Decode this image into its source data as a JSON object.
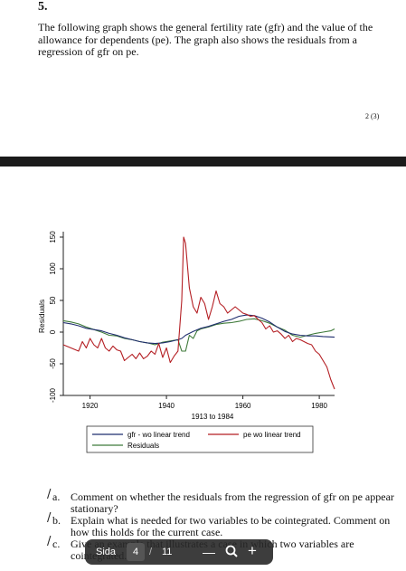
{
  "question": {
    "number": "5.",
    "intro": "The following graph shows the general fertility rate (gfr) and the value of the allowance for dependents (pe). The graph also shows the residuals from a regression of gfr on pe.",
    "page_mark": "2 (3)"
  },
  "chart_data": {
    "type": "line",
    "ylabel": "Residuals",
    "xlabel": "1913 to 1984",
    "xlim": [
      1913,
      1984
    ],
    "ylim": [
      -100,
      150
    ],
    "x_ticks": [
      "1920",
      "1940",
      "1960",
      "1980"
    ],
    "y_ticks": [
      "-100",
      "-50",
      "0",
      "50",
      "100",
      "150"
    ],
    "legend_position": "bottom",
    "series": [
      {
        "name": "gfr - wo linear trend",
        "color": "#1f2d6e",
        "x": [
          1913,
          1915,
          1917,
          1919,
          1921,
          1923,
          1925,
          1927,
          1929,
          1931,
          1933,
          1935,
          1937,
          1939,
          1941,
          1943,
          1944,
          1945,
          1947,
          1949,
          1951,
          1953,
          1955,
          1957,
          1959,
          1961,
          1963,
          1965,
          1967,
          1969,
          1971,
          1973,
          1975,
          1977,
          1979,
          1981,
          1984
        ],
        "y": [
          15,
          13,
          10,
          6,
          4,
          2,
          -2,
          -5,
          -9,
          -12,
          -15,
          -17,
          -18,
          -17,
          -15,
          -12,
          -10,
          -5,
          1,
          6,
          9,
          13,
          17,
          20,
          25,
          27,
          26,
          22,
          16,
          8,
          1,
          -3,
          -5,
          -6,
          -6,
          -7,
          -8
        ]
      },
      {
        "name": "pe wo linear trend",
        "color": "#b41e23",
        "x": [
          1913,
          1915,
          1917,
          1918,
          1919,
          1920,
          1921,
          1922,
          1923,
          1924,
          1925,
          1926,
          1927,
          1928,
          1929,
          1930,
          1931,
          1932,
          1933,
          1934,
          1935,
          1936,
          1937,
          1938,
          1939,
          1940,
          1941,
          1942,
          1943,
          1944,
          1944.5,
          1945,
          1946,
          1947,
          1948,
          1949,
          1950,
          1951,
          1952,
          1953,
          1954,
          1955,
          1956,
          1957,
          1958,
          1959,
          1960,
          1961,
          1962,
          1963,
          1964,
          1965,
          1966,
          1967,
          1968,
          1969,
          1970,
          1971,
          1972,
          1973,
          1974,
          1975,
          1976,
          1977,
          1978,
          1979,
          1980,
          1981,
          1982,
          1983,
          1984
        ],
        "y": [
          -20,
          -25,
          -30,
          -15,
          -25,
          -10,
          -20,
          -25,
          -10,
          -25,
          -30,
          -22,
          -28,
          -30,
          -45,
          -40,
          -35,
          -42,
          -33,
          -42,
          -38,
          -30,
          -35,
          -18,
          -40,
          -25,
          -48,
          -38,
          -30,
          50,
          150,
          140,
          70,
          40,
          30,
          55,
          45,
          20,
          40,
          65,
          45,
          40,
          30,
          35,
          40,
          35,
          30,
          28,
          25,
          26,
          20,
          15,
          5,
          10,
          0,
          2,
          -3,
          -10,
          -5,
          -15,
          -10,
          -12,
          -15,
          -18,
          -20,
          -30,
          -35,
          -45,
          -55,
          -75,
          -90
        ]
      },
      {
        "name": "Residuals",
        "color": "#3f7a3a",
        "x": [
          1913,
          1915,
          1917,
          1919,
          1921,
          1923,
          1925,
          1927,
          1929,
          1931,
          1933,
          1935,
          1937,
          1939,
          1941,
          1943,
          1944,
          1945,
          1946,
          1947,
          1948,
          1949,
          1951,
          1953,
          1955,
          1957,
          1959,
          1961,
          1963,
          1965,
          1967,
          1969,
          1971,
          1973,
          1975,
          1977,
          1979,
          1981,
          1983,
          1984
        ],
        "y": [
          18,
          16,
          13,
          8,
          4,
          0,
          -5,
          -6,
          -10,
          -12,
          -15,
          -17,
          -20,
          -16,
          -14,
          -12,
          -30,
          -30,
          -5,
          -10,
          2,
          5,
          8,
          12,
          14,
          15,
          17,
          20,
          21,
          18,
          14,
          8,
          3,
          -5,
          -8,
          -5,
          -2,
          0,
          2,
          5
        ]
      }
    ]
  },
  "questions": [
    {
      "letter": "a.",
      "text": "Comment on whether the residuals from the regression of gfr on pe appear stationary?"
    },
    {
      "letter": "b.",
      "text": "Explain what is needed for two variables to be cointegrated. Comment on how this holds for the current case."
    },
    {
      "letter": "c.",
      "text": "Give an example that illustrates a case in which two variables are cointegrated."
    }
  ],
  "toolbar": {
    "page_label": "Sida",
    "current_page": "4",
    "separator": "/",
    "total_pages": "11",
    "zoom_out": "—",
    "zoom_in": "+"
  }
}
